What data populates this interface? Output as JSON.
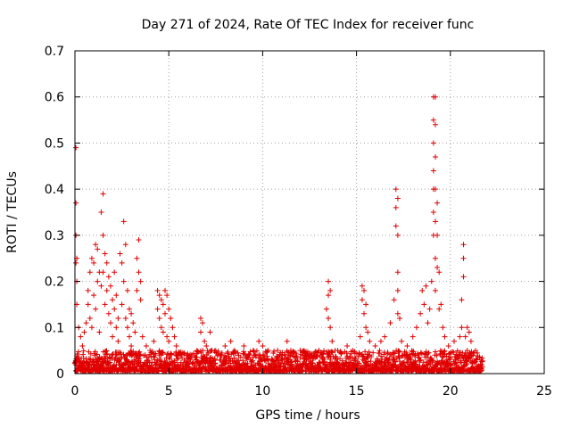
{
  "chart_data": {
    "type": "scatter",
    "title": "Day 271 of 2024, Rate Of TEC Index for receiver func",
    "xlabel": "GPS time / hours",
    "ylabel": "ROTI / TECUs",
    "xlim": [
      0,
      25
    ],
    "ylim": [
      0,
      0.7
    ],
    "xticks": [
      0,
      5,
      10,
      15,
      20,
      25
    ],
    "yticks": [
      0,
      0.1,
      0.2,
      0.3,
      0.4,
      0.5,
      0.6,
      0.7
    ],
    "xtick_labels": [
      "0",
      "5",
      "10",
      "15",
      "20",
      "25"
    ],
    "ytick_labels": [
      "0",
      "0.1",
      "0.2",
      "0.3",
      "0.4",
      "0.5",
      "0.6",
      "0.7"
    ],
    "grid": true,
    "marker": "+",
    "marker_color": "#e00000",
    "series": [
      {
        "name": "ROTI",
        "baseline_x_range": [
          0,
          21.7
        ],
        "points": [
          [
            0.05,
            0.49
          ],
          [
            0.05,
            0.37
          ],
          [
            0.05,
            0.3
          ],
          [
            0.05,
            0.24
          ],
          [
            0.1,
            0.25
          ],
          [
            0.1,
            0.2
          ],
          [
            0.1,
            0.15
          ],
          [
            0.2,
            0.1
          ],
          [
            0.3,
            0.08
          ],
          [
            0.4,
            0.06
          ],
          [
            0.5,
            0.09
          ],
          [
            0.6,
            0.11
          ],
          [
            0.7,
            0.18
          ],
          [
            0.7,
            0.15
          ],
          [
            0.8,
            0.22
          ],
          [
            0.8,
            0.12
          ],
          [
            0.9,
            0.25
          ],
          [
            0.9,
            0.1
          ],
          [
            1.0,
            0.24
          ],
          [
            1.0,
            0.17
          ],
          [
            1.1,
            0.28
          ],
          [
            1.1,
            0.14
          ],
          [
            1.2,
            0.27
          ],
          [
            1.2,
            0.2
          ],
          [
            1.3,
            0.22
          ],
          [
            1.3,
            0.09
          ],
          [
            1.4,
            0.35
          ],
          [
            1.4,
            0.19
          ],
          [
            1.5,
            0.39
          ],
          [
            1.5,
            0.3
          ],
          [
            1.5,
            0.22
          ],
          [
            1.6,
            0.26
          ],
          [
            1.6,
            0.15
          ],
          [
            1.7,
            0.24
          ],
          [
            1.7,
            0.18
          ],
          [
            1.8,
            0.21
          ],
          [
            1.8,
            0.13
          ],
          [
            1.9,
            0.19
          ],
          [
            1.9,
            0.11
          ],
          [
            2.0,
            0.16
          ],
          [
            2.0,
            0.08
          ],
          [
            2.1,
            0.14
          ],
          [
            2.1,
            0.22
          ],
          [
            2.2,
            0.1
          ],
          [
            2.2,
            0.17
          ],
          [
            2.3,
            0.12
          ],
          [
            2.3,
            0.07
          ],
          [
            2.4,
            0.26
          ],
          [
            2.5,
            0.24
          ],
          [
            2.5,
            0.15
          ],
          [
            2.6,
            0.33
          ],
          [
            2.6,
            0.2
          ],
          [
            2.7,
            0.28
          ],
          [
            2.7,
            0.12
          ],
          [
            2.8,
            0.18
          ],
          [
            2.8,
            0.1
          ],
          [
            2.9,
            0.14
          ],
          [
            2.9,
            0.08
          ],
          [
            3.0,
            0.13
          ],
          [
            3.0,
            0.06
          ],
          [
            3.1,
            0.11
          ],
          [
            3.2,
            0.09
          ],
          [
            3.3,
            0.25
          ],
          [
            3.3,
            0.18
          ],
          [
            3.4,
            0.29
          ],
          [
            3.4,
            0.22
          ],
          [
            3.5,
            0.2
          ],
          [
            3.5,
            0.16
          ],
          [
            3.6,
            0.08
          ],
          [
            3.8,
            0.06
          ],
          [
            4.0,
            0.05
          ],
          [
            4.2,
            0.07
          ],
          [
            4.4,
            0.18
          ],
          [
            4.4,
            0.14
          ],
          [
            4.5,
            0.17
          ],
          [
            4.5,
            0.12
          ],
          [
            4.6,
            0.16
          ],
          [
            4.6,
            0.1
          ],
          [
            4.7,
            0.15
          ],
          [
            4.7,
            0.09
          ],
          [
            4.8,
            0.18
          ],
          [
            4.8,
            0.13
          ],
          [
            4.9,
            0.17
          ],
          [
            4.9,
            0.08
          ],
          [
            5.0,
            0.14
          ],
          [
            5.0,
            0.07
          ],
          [
            5.1,
            0.12
          ],
          [
            5.2,
            0.1
          ],
          [
            5.3,
            0.08
          ],
          [
            5.4,
            0.06
          ],
          [
            5.5,
            0.04
          ],
          [
            6.0,
            0.04
          ],
          [
            6.5,
            0.05
          ],
          [
            6.7,
            0.12
          ],
          [
            6.7,
            0.09
          ],
          [
            6.8,
            0.11
          ],
          [
            6.9,
            0.07
          ],
          [
            7.0,
            0.06
          ],
          [
            7.2,
            0.09
          ],
          [
            7.3,
            0.05
          ],
          [
            7.5,
            0.05
          ],
          [
            8.0,
            0.06
          ],
          [
            8.3,
            0.07
          ],
          [
            8.5,
            0.05
          ],
          [
            9.0,
            0.06
          ],
          [
            9.5,
            0.05
          ],
          [
            9.8,
            0.07
          ],
          [
            10.0,
            0.06
          ],
          [
            10.3,
            0.05
          ],
          [
            10.8,
            0.05
          ],
          [
            11.3,
            0.07
          ],
          [
            11.5,
            0.05
          ],
          [
            12.0,
            0.05
          ],
          [
            12.5,
            0.04
          ],
          [
            13.0,
            0.05
          ],
          [
            13.4,
            0.14
          ],
          [
            13.5,
            0.2
          ],
          [
            13.5,
            0.17
          ],
          [
            13.5,
            0.12
          ],
          [
            13.6,
            0.18
          ],
          [
            13.6,
            0.1
          ],
          [
            13.7,
            0.07
          ],
          [
            14.0,
            0.05
          ],
          [
            14.5,
            0.06
          ],
          [
            14.8,
            0.05
          ],
          [
            15.2,
            0.08
          ],
          [
            15.3,
            0.19
          ],
          [
            15.3,
            0.16
          ],
          [
            15.4,
            0.18
          ],
          [
            15.4,
            0.13
          ],
          [
            15.5,
            0.15
          ],
          [
            15.5,
            0.1
          ],
          [
            15.6,
            0.09
          ],
          [
            15.7,
            0.07
          ],
          [
            16.0,
            0.06
          ],
          [
            16.3,
            0.07
          ],
          [
            16.5,
            0.08
          ],
          [
            16.8,
            0.11
          ],
          [
            17.0,
            0.16
          ],
          [
            17.1,
            0.4
          ],
          [
            17.1,
            0.36
          ],
          [
            17.1,
            0.32
          ],
          [
            17.2,
            0.38
          ],
          [
            17.2,
            0.3
          ],
          [
            17.2,
            0.22
          ],
          [
            17.2,
            0.18
          ],
          [
            17.2,
            0.13
          ],
          [
            17.3,
            0.12
          ],
          [
            17.4,
            0.07
          ],
          [
            17.7,
            0.06
          ],
          [
            18.0,
            0.08
          ],
          [
            18.2,
            0.1
          ],
          [
            18.4,
            0.13
          ],
          [
            18.5,
            0.18
          ],
          [
            18.6,
            0.15
          ],
          [
            18.7,
            0.19
          ],
          [
            18.8,
            0.11
          ],
          [
            18.9,
            0.14
          ],
          [
            19.0,
            0.2
          ],
          [
            19.1,
            0.6
          ],
          [
            19.1,
            0.55
          ],
          [
            19.1,
            0.5
          ],
          [
            19.1,
            0.44
          ],
          [
            19.1,
            0.4
          ],
          [
            19.1,
            0.35
          ],
          [
            19.1,
            0.3
          ],
          [
            19.2,
            0.6
          ],
          [
            19.2,
            0.54
          ],
          [
            19.2,
            0.47
          ],
          [
            19.2,
            0.4
          ],
          [
            19.2,
            0.33
          ],
          [
            19.2,
            0.25
          ],
          [
            19.2,
            0.18
          ],
          [
            19.3,
            0.37
          ],
          [
            19.3,
            0.3
          ],
          [
            19.3,
            0.23
          ],
          [
            19.4,
            0.22
          ],
          [
            19.4,
            0.14
          ],
          [
            19.5,
            0.15
          ],
          [
            19.6,
            0.1
          ],
          [
            19.7,
            0.08
          ],
          [
            19.9,
            0.06
          ],
          [
            20.2,
            0.07
          ],
          [
            20.5,
            0.08
          ],
          [
            20.6,
            0.16
          ],
          [
            20.6,
            0.1
          ],
          [
            20.7,
            0.28
          ],
          [
            20.7,
            0.25
          ],
          [
            20.7,
            0.21
          ],
          [
            20.8,
            0.08
          ],
          [
            20.9,
            0.1
          ],
          [
            21.0,
            0.09
          ],
          [
            21.1,
            0.07
          ],
          [
            21.2,
            0.04
          ],
          [
            21.4,
            0.03
          ],
          [
            21.6,
            0.02
          ],
          [
            21.7,
            0.015
          ]
        ]
      }
    ]
  }
}
